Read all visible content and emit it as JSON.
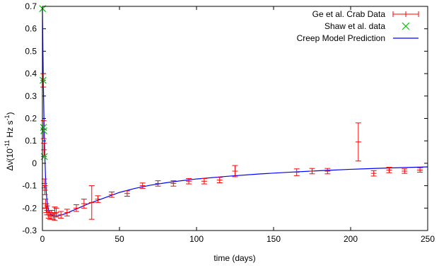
{
  "chart_data": {
    "type": "scatter",
    "title": "",
    "xlabel": "time (days)",
    "ylabel": "Δν̇(10⁻¹¹ Hz s⁻¹)",
    "ylabel_parts": {
      "main": "Δν̇(10",
      "exp1": "-11",
      "mid": " Hz s",
      "exp2": "-1",
      "end": ")"
    },
    "xlim": [
      0,
      250
    ],
    "ylim": [
      -0.3,
      0.7
    ],
    "xticks": [
      "0",
      "50",
      "100",
      "150",
      "200",
      "250"
    ],
    "yticks": [
      "-0.3",
      "-0.2",
      "-0.1",
      "0",
      "0.1",
      "0.2",
      "0.3",
      "0.4",
      "0.5",
      "0.6",
      "0.7"
    ],
    "grid": false,
    "legend_position": "top-right",
    "series": [
      {
        "name": "Ge et al. Crab Data",
        "marker": "cross-errorbar",
        "color": "#ff0000",
        "points": [
          {
            "x": 0.5,
            "y": 0.37,
            "err": 0.03
          },
          {
            "x": 0.8,
            "y": 0.15,
            "err": 0.04
          },
          {
            "x": 1.0,
            "y": 0.06,
            "err": 0.03
          },
          {
            "x": 1.3,
            "y": -0.09,
            "err": 0.02
          },
          {
            "x": 1.6,
            "y": -0.12,
            "err": 0.02
          },
          {
            "x": 2.0,
            "y": -0.18,
            "err": 0.02
          },
          {
            "x": 2.5,
            "y": -0.2,
            "err": 0.02
          },
          {
            "x": 3.0,
            "y": -0.21,
            "err": 0.02
          },
          {
            "x": 4.0,
            "y": -0.23,
            "err": 0.015
          },
          {
            "x": 5.0,
            "y": -0.235,
            "err": 0.015
          },
          {
            "x": 6.0,
            "y": -0.23,
            "err": 0.02
          },
          {
            "x": 7.0,
            "y": -0.235,
            "err": 0.015
          },
          {
            "x": 8.0,
            "y": -0.225,
            "err": 0.03
          },
          {
            "x": 9.0,
            "y": -0.22,
            "err": 0.02
          },
          {
            "x": 12.0,
            "y": -0.23,
            "err": 0.015
          },
          {
            "x": 16.0,
            "y": -0.22,
            "err": 0.015
          },
          {
            "x": 22.0,
            "y": -0.2,
            "err": 0.015
          },
          {
            "x": 27.0,
            "y": -0.18,
            "err": 0.02
          },
          {
            "x": 32.0,
            "y": -0.175,
            "err": 0.075
          },
          {
            "x": 36.0,
            "y": -0.16,
            "err": 0.015
          },
          {
            "x": 45.0,
            "y": -0.14,
            "err": 0.012
          },
          {
            "x": 55.0,
            "y": -0.135,
            "err": 0.012
          },
          {
            "x": 65.0,
            "y": -0.1,
            "err": 0.012
          },
          {
            "x": 75.0,
            "y": -0.09,
            "err": 0.012
          },
          {
            "x": 85.0,
            "y": -0.09,
            "err": 0.012
          },
          {
            "x": 95.0,
            "y": -0.08,
            "err": 0.012
          },
          {
            "x": 105.0,
            "y": -0.08,
            "err": 0.012
          },
          {
            "x": 115.0,
            "y": -0.075,
            "err": 0.012
          },
          {
            "x": 125.0,
            "y": -0.035,
            "err": 0.025
          },
          {
            "x": 165.0,
            "y": -0.04,
            "err": 0.015
          },
          {
            "x": 175.0,
            "y": -0.035,
            "err": 0.012
          },
          {
            "x": 185.0,
            "y": -0.035,
            "err": 0.012
          },
          {
            "x": 205.0,
            "y": 0.095,
            "err": 0.085
          },
          {
            "x": 215.0,
            "y": -0.045,
            "err": 0.012
          },
          {
            "x": 225.0,
            "y": -0.03,
            "err": 0.012
          },
          {
            "x": 235.0,
            "y": -0.035,
            "err": 0.01
          },
          {
            "x": 245.0,
            "y": -0.03,
            "err": 0.01
          }
        ]
      },
      {
        "name": "Shaw et al. data",
        "marker": "x",
        "color": "#00c000",
        "points": [
          {
            "x": 0.1,
            "y": 0.69
          },
          {
            "x": 0.4,
            "y": 0.37
          },
          {
            "x": 0.7,
            "y": 0.16
          },
          {
            "x": 0.9,
            "y": 0.145
          },
          {
            "x": 1.2,
            "y": 0.03
          }
        ]
      },
      {
        "name": "Creep Model Prediction",
        "marker": "line",
        "color": "#0000ff",
        "points": [
          {
            "x": 0,
            "y": 0.69
          },
          {
            "x": 0.3,
            "y": 0.52
          },
          {
            "x": 0.6,
            "y": 0.36
          },
          {
            "x": 1.0,
            "y": 0.2
          },
          {
            "x": 1.5,
            "y": 0.05
          },
          {
            "x": 2.0,
            "y": -0.06
          },
          {
            "x": 2.5,
            "y": -0.13
          },
          {
            "x": 3.0,
            "y": -0.17
          },
          {
            "x": 4.0,
            "y": -0.21
          },
          {
            "x": 5.0,
            "y": -0.225
          },
          {
            "x": 7.0,
            "y": -0.235
          },
          {
            "x": 10.0,
            "y": -0.235
          },
          {
            "x": 15.0,
            "y": -0.225
          },
          {
            "x": 20.0,
            "y": -0.21
          },
          {
            "x": 30.0,
            "y": -0.18
          },
          {
            "x": 40.0,
            "y": -0.155
          },
          {
            "x": 50.0,
            "y": -0.13
          },
          {
            "x": 60.0,
            "y": -0.112
          },
          {
            "x": 70.0,
            "y": -0.098
          },
          {
            "x": 80.0,
            "y": -0.087
          },
          {
            "x": 90.0,
            "y": -0.078
          },
          {
            "x": 100.0,
            "y": -0.07
          },
          {
            "x": 120.0,
            "y": -0.058
          },
          {
            "x": 140.0,
            "y": -0.048
          },
          {
            "x": 160.0,
            "y": -0.04
          },
          {
            "x": 180.0,
            "y": -0.033
          },
          {
            "x": 200.0,
            "y": -0.027
          },
          {
            "x": 220.0,
            "y": -0.022
          },
          {
            "x": 240.0,
            "y": -0.018
          },
          {
            "x": 250.0,
            "y": -0.016
          }
        ]
      }
    ]
  }
}
